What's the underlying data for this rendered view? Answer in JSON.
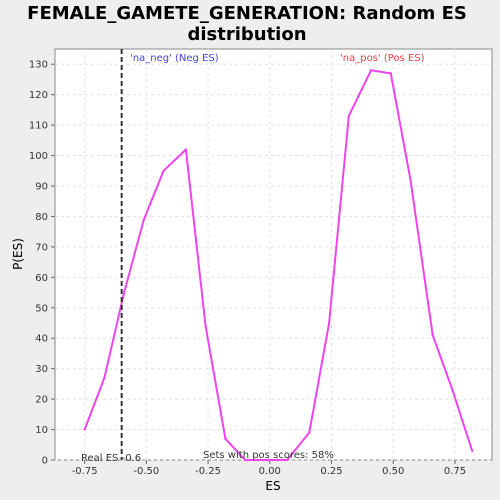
{
  "chart_data": {
    "type": "line",
    "title_line1": "FEMALE_GAMETE_GENERATION: Random ES",
    "title_line2": "distribution",
    "xlabel": "ES",
    "ylabel": "P(ES)",
    "xlim": [
      -0.87,
      0.9
    ],
    "ylim": [
      0,
      135
    ],
    "x_ticks": [
      -0.75,
      -0.5,
      -0.25,
      0.0,
      0.25,
      0.5,
      0.75
    ],
    "x_tick_labels": [
      "-0.75",
      "-0.50",
      "-0.25",
      "0.00",
      "0.25",
      "0.50",
      "0.75"
    ],
    "y_ticks": [
      0,
      10,
      20,
      30,
      40,
      50,
      60,
      70,
      80,
      90,
      100,
      110,
      120,
      130
    ],
    "y_tick_labels": [
      "0",
      "10",
      "20",
      "30",
      "40",
      "50",
      "60",
      "70",
      "80",
      "90",
      "100",
      "110",
      "120",
      "130"
    ],
    "grid": true,
    "series": [
      {
        "color": "#ee44ee",
        "x": [
          -0.75,
          -0.67,
          -0.59,
          -0.51,
          -0.43,
          -0.34,
          -0.26,
          -0.18,
          -0.1,
          -0.01,
          0.07,
          0.16,
          0.24,
          0.32,
          0.41,
          0.49,
          0.57,
          0.66,
          0.74,
          0.82
        ],
        "y": [
          10,
          27,
          55,
          79,
          95,
          102,
          44,
          7,
          0,
          0,
          0,
          9,
          45,
          113,
          128,
          127,
          92,
          41,
          23,
          3
        ]
      }
    ],
    "real_es": -0.6,
    "annotations": {
      "neg_label": "'na_neg' (Neg ES)",
      "pos_label": "'na_pos' (Pos ES)",
      "real_es_label": "Real ES -0.6",
      "pos_scores_label": "Sets with pos scores: 58%"
    },
    "colors": {
      "neg": "#4444dd",
      "pos": "#dd4444",
      "line": "#ee44ee"
    }
  }
}
